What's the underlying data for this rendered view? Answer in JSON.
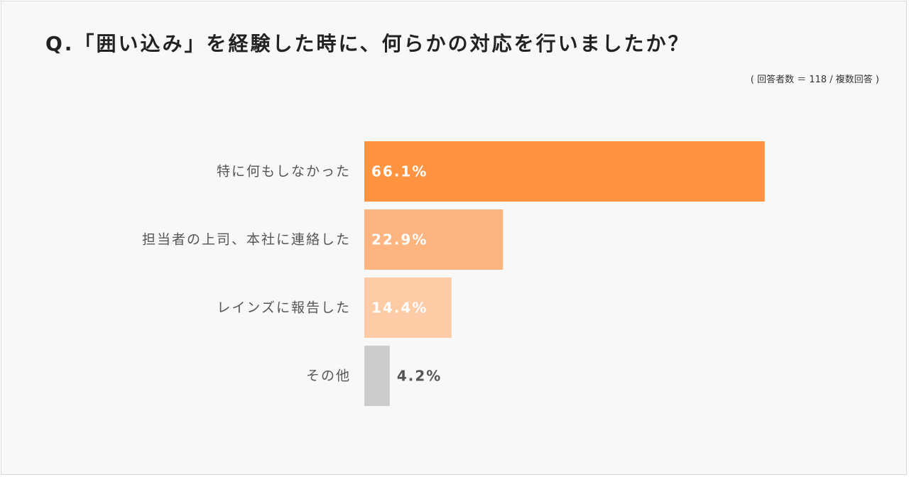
{
  "title": "Q.「囲い込み」を経験した時に、何らかの対応を行いましたか？",
  "note": "( 回答者数 ＝ 118 / 複数回答 )",
  "colors": {
    "bar_1": "#ff9340",
    "bar_2": "#fdb47f",
    "bar_3": "#fdcca7",
    "bar_4": "#cccccc",
    "label_inside": "#ffffff",
    "label_outside": "#555555"
  },
  "chart_data": {
    "type": "bar",
    "orientation": "horizontal",
    "categories": [
      "特に何もしなかった",
      "担当者の上司、本社に連絡した",
      "レインズに報告した",
      "その他"
    ],
    "values": [
      66.1,
      22.9,
      14.4,
      4.2
    ],
    "value_labels": [
      "66.1%",
      "22.9%",
      "14.4%",
      "4.2%"
    ],
    "unit": "%",
    "title": "Q.「囲い込み」を経験した時に、何らかの対応を行いましたか？",
    "xlabel": "",
    "ylabel": "",
    "grid": false,
    "legend": "none"
  }
}
